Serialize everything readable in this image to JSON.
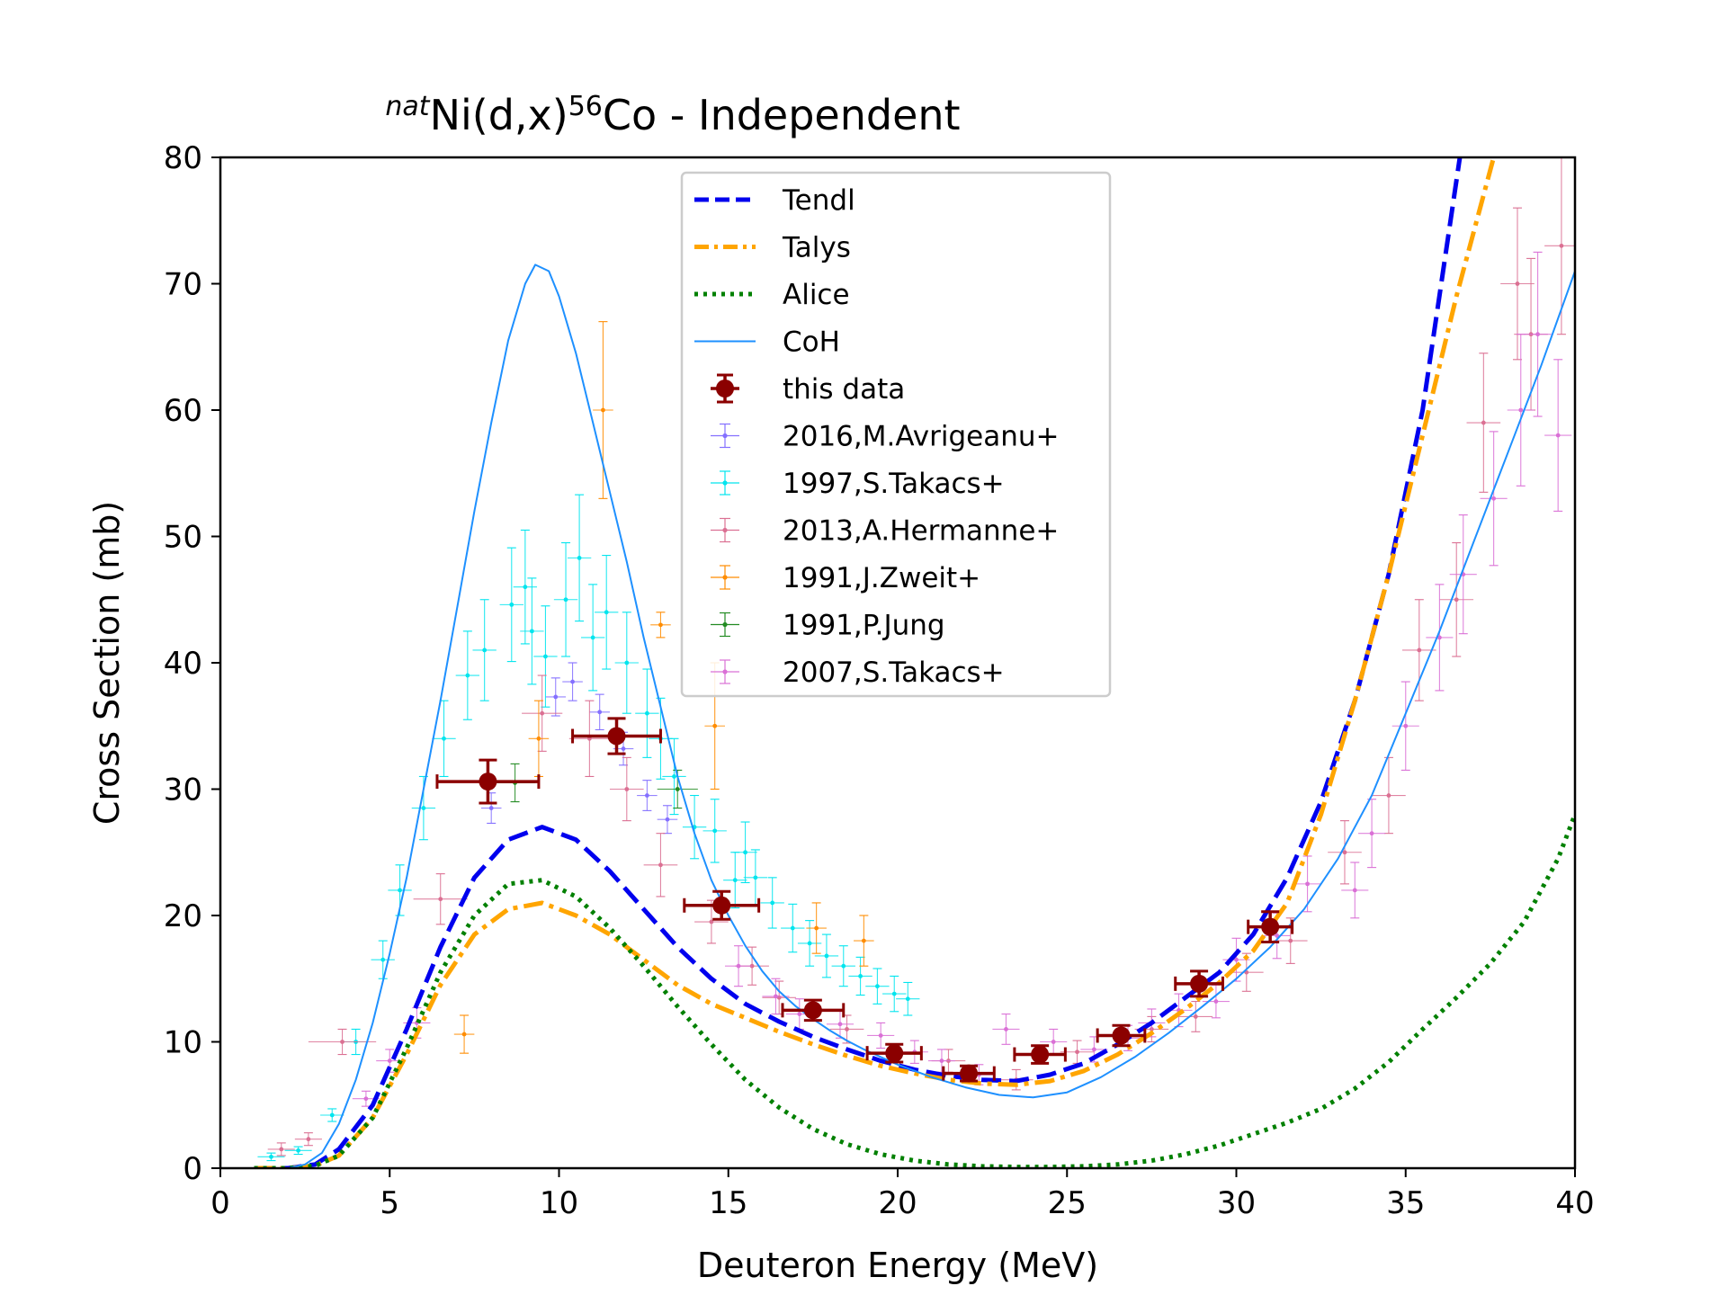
{
  "chart_data": {
    "type": "line",
    "title": {
      "prefix_sup": "nat",
      "part1": "Ni(d,x)",
      "mid_sup": "56",
      "part2": "Co - Independent"
    },
    "xlabel": "Deuteron Energy (MeV)",
    "ylabel": "Cross Section (mb)",
    "xlim": [
      0,
      40
    ],
    "ylim": [
      0,
      80
    ],
    "xticks": [
      0,
      5,
      10,
      15,
      20,
      25,
      30,
      35,
      40
    ],
    "yticks": [
      0,
      10,
      20,
      30,
      40,
      50,
      60,
      70,
      80
    ],
    "grid": false,
    "legend_position": "top-center",
    "curves": [
      {
        "name": "Tendl",
        "color": "#0000ee",
        "style": "dashed",
        "x": [
          1,
          2,
          2.8,
          3.5,
          4.5,
          5.5,
          6.5,
          7.5,
          8.5,
          9.5,
          10.5,
          11.5,
          12.5,
          13.5,
          14.5,
          15.5,
          16.5,
          17.5,
          18.5,
          19.5,
          20.5,
          21.5,
          22.5,
          23.5,
          24.5,
          25.5,
          26.5,
          27.5,
          28.5,
          29.5,
          30.5,
          31.5,
          32.5,
          33.5,
          34.5,
          35.5,
          36.6
        ],
        "y": [
          0,
          0,
          0.3,
          1.5,
          5,
          11,
          17.5,
          23,
          26,
          27,
          26,
          23.5,
          20.5,
          17.5,
          15,
          13,
          11.6,
          10.4,
          9.4,
          8.5,
          7.8,
          7.3,
          7,
          6.9,
          7.4,
          8.3,
          9.8,
          11.5,
          13.5,
          15.5,
          18.5,
          23,
          29,
          37,
          47,
          60,
          80
        ]
      },
      {
        "name": "Talys",
        "color": "#ffa500",
        "style": "dashdot",
        "x": [
          1,
          2,
          2.8,
          3.5,
          4.5,
          5.5,
          6.5,
          7.5,
          8.5,
          9.5,
          10.5,
          11.5,
          12.5,
          13.5,
          14.5,
          15.5,
          16.5,
          17.5,
          18.5,
          19.5,
          20.5,
          21.5,
          22.5,
          23.5,
          24.5,
          25.5,
          26.5,
          27.5,
          28.5,
          29.5,
          30.5,
          31.5,
          32.5,
          33.5,
          34.5,
          35.5,
          36.5,
          37.6
        ],
        "y": [
          0,
          0,
          0.2,
          1,
          4,
          9,
          14.5,
          18.5,
          20.5,
          21,
          20,
          18.5,
          16.5,
          14.5,
          13,
          11.9,
          10.8,
          9.8,
          8.9,
          8.1,
          7.5,
          7,
          6.7,
          6.6,
          6.9,
          7.7,
          9,
          10.7,
          12.6,
          14.7,
          17.2,
          21,
          28,
          37,
          47,
          58,
          69,
          80
        ]
      },
      {
        "name": "Alice",
        "color": "#008000",
        "style": "dotted",
        "x": [
          1,
          2,
          2.8,
          3.5,
          4.5,
          5.5,
          6.5,
          7.5,
          8.5,
          9.5,
          10.5,
          11.5,
          12.5,
          13.5,
          14.5,
          15.5,
          16.5,
          17.5,
          18.5,
          19.5,
          20.5,
          21.5,
          22.5,
          23.5,
          24.5,
          25.5,
          26.5,
          27.5,
          28.5,
          29.5,
          30.5,
          31.5,
          32.5,
          33.5,
          34.5,
          35.5,
          36.5,
          37.5,
          38.5,
          39.5,
          40
        ],
        "y": [
          0,
          0,
          0.2,
          1,
          4,
          9.5,
          15.5,
          20,
          22.5,
          22.8,
          21.5,
          19,
          16,
          12.8,
          9.8,
          7,
          4.8,
          3.1,
          1.9,
          1.1,
          0.6,
          0.3,
          0.15,
          0.1,
          0.1,
          0.15,
          0.3,
          0.6,
          1.1,
          1.8,
          2.7,
          3.6,
          4.7,
          6.3,
          8.4,
          11,
          13.5,
          16.2,
          19.5,
          24.5,
          28
        ]
      },
      {
        "name": "CoH",
        "color": "#1e90ff",
        "style": "solid",
        "x": [
          1,
          2,
          2.5,
          3,
          3.5,
          4,
          4.5,
          5,
          5.5,
          6,
          6.5,
          7,
          7.5,
          8,
          8.5,
          9,
          9.3,
          9.7,
          10,
          10.5,
          11,
          11.5,
          12,
          12.5,
          13,
          13.5,
          14,
          14.5,
          15,
          15.5,
          16,
          16.5,
          17,
          17.5,
          18,
          18.5,
          19,
          19.5,
          20,
          21,
          22,
          23,
          24,
          25,
          26,
          27,
          28,
          29,
          30,
          31,
          32,
          33,
          34,
          35,
          36,
          37,
          38,
          39,
          40
        ],
        "y": [
          0,
          0,
          0.3,
          1.2,
          3.5,
          7,
          11.5,
          17,
          23,
          30,
          37,
          44.5,
          52,
          59,
          65.5,
          70,
          71.5,
          71,
          69,
          64.5,
          59,
          53.5,
          48,
          42,
          36.5,
          31,
          26.5,
          22.8,
          20,
          17.6,
          15.6,
          14,
          12.8,
          11.8,
          10.9,
          10.1,
          9.4,
          8.8,
          8.2,
          7.2,
          6.4,
          5.8,
          5.6,
          6,
          7.2,
          8.8,
          10.7,
          12.8,
          15,
          17.5,
          20.5,
          24.5,
          29.5,
          36,
          42.5,
          49.5,
          56.5,
          63.5,
          71
        ]
      }
    ],
    "this_data": {
      "name": "this data",
      "color": "#8b0000",
      "points": [
        {
          "x": 7.9,
          "y": 30.6,
          "xerr": 1.5,
          "yerr": 1.7
        },
        {
          "x": 11.7,
          "y": 34.2,
          "xerr": 1.3,
          "yerr": 1.4
        },
        {
          "x": 14.8,
          "y": 20.8,
          "xerr": 1.1,
          "yerr": 1.1
        },
        {
          "x": 17.5,
          "y": 12.5,
          "xerr": 0.9,
          "yerr": 0.8
        },
        {
          "x": 19.9,
          "y": 9.1,
          "xerr": 0.8,
          "yerr": 0.7
        },
        {
          "x": 22.1,
          "y": 7.5,
          "xerr": 0.75,
          "yerr": 0.6
        },
        {
          "x": 24.2,
          "y": 9.0,
          "xerr": 0.75,
          "yerr": 0.7
        },
        {
          "x": 26.6,
          "y": 10.5,
          "xerr": 0.7,
          "yerr": 0.8
        },
        {
          "x": 28.9,
          "y": 14.6,
          "xerr": 0.7,
          "yerr": 1.0
        },
        {
          "x": 31.0,
          "y": 19.1,
          "xerr": 0.65,
          "yerr": 1.2
        }
      ]
    },
    "exp_series": [
      {
        "name": "2016,M.Avrigeanu+",
        "color": "#8470ff",
        "points": [
          [
            9.9,
            37.3,
            0.3,
            1.5
          ],
          [
            10.4,
            38.5,
            0.3,
            1.5
          ],
          [
            11.2,
            36.1,
            0.3,
            1.4
          ],
          [
            11.9,
            33.2,
            0.3,
            1.3
          ],
          [
            12.6,
            29.5,
            0.3,
            1.2
          ],
          [
            13.2,
            27.6,
            0.3,
            1.1
          ],
          [
            8.0,
            28.5,
            0.3,
            1.2
          ]
        ]
      },
      {
        "name": "1997,S.Takacs+",
        "color": "#00e5ee",
        "points": [
          [
            1.5,
            0.9,
            0.4,
            0.3
          ],
          [
            2.3,
            1.4,
            0.4,
            0.3
          ],
          [
            3.3,
            4.2,
            0.35,
            0.5
          ],
          [
            4.0,
            10,
            0.35,
            1
          ],
          [
            4.8,
            16.5,
            0.35,
            1.5
          ],
          [
            5.3,
            22,
            0.35,
            2
          ],
          [
            6.0,
            28.5,
            0.35,
            2.5
          ],
          [
            6.6,
            34,
            0.35,
            3
          ],
          [
            7.3,
            39,
            0.35,
            3.5
          ],
          [
            7.8,
            41,
            0.35,
            4
          ],
          [
            8.6,
            44.6,
            0.35,
            4.5
          ],
          [
            9.0,
            46,
            0.35,
            4.5
          ],
          [
            9.6,
            40.5,
            0.35,
            4
          ],
          [
            10.2,
            45,
            0.35,
            4.5
          ],
          [
            10.6,
            48.3,
            0.35,
            5
          ],
          [
            11.4,
            44,
            0.35,
            4.5
          ],
          [
            12.0,
            40,
            0.35,
            4
          ],
          [
            12.6,
            36,
            0.35,
            3.5
          ],
          [
            13.4,
            31,
            0.35,
            3
          ],
          [
            14.0,
            27,
            0.35,
            2.5
          ],
          [
            14.6,
            26.7,
            0.35,
            2.5
          ],
          [
            15.2,
            22.8,
            0.35,
            2.2
          ],
          [
            15.8,
            23,
            0.35,
            2.2
          ],
          [
            16.3,
            21,
            0.35,
            2
          ],
          [
            16.9,
            19,
            0.35,
            1.9
          ],
          [
            17.4,
            17.8,
            0.35,
            1.8
          ],
          [
            17.9,
            16.8,
            0.35,
            1.7
          ],
          [
            18.4,
            16,
            0.35,
            1.6
          ],
          [
            18.9,
            15.2,
            0.35,
            1.5
          ],
          [
            19.4,
            14.4,
            0.35,
            1.4
          ],
          [
            19.9,
            13.8,
            0.35,
            1.4
          ],
          [
            20.3,
            13.4,
            0.35,
            1.3
          ],
          [
            9.2,
            42.5,
            0.35,
            4.2
          ],
          [
            11.0,
            42,
            0.35,
            4.2
          ],
          [
            13.0,
            34,
            0.35,
            3.2
          ],
          [
            15.5,
            25,
            0.35,
            2.4
          ]
        ]
      },
      {
        "name": "2013,A.Hermanne+",
        "color": "#db7093",
        "points": [
          [
            3.6,
            10.0,
            1.0,
            1.0
          ],
          [
            6.5,
            21.3,
            0.8,
            2
          ],
          [
            9.5,
            36,
            0.6,
            3
          ],
          [
            10.9,
            34,
            0.6,
            3
          ],
          [
            12.0,
            30,
            0.5,
            2.5
          ],
          [
            13.0,
            24,
            0.5,
            2.5
          ],
          [
            14.5,
            19.5,
            0.5,
            1.7
          ],
          [
            15.7,
            16,
            0.5,
            1.5
          ],
          [
            16.5,
            13.5,
            0.5,
            1.3
          ],
          [
            18.5,
            11,
            0.5,
            1.1
          ],
          [
            21.5,
            8.5,
            0.5,
            0.9
          ],
          [
            23.5,
            7,
            0.5,
            0.8
          ],
          [
            25.3,
            9.2,
            0.5,
            0.9
          ],
          [
            27.5,
            11,
            0.5,
            1
          ],
          [
            28.8,
            12,
            0.5,
            1.2
          ],
          [
            30.3,
            15.5,
            0.5,
            1.5
          ],
          [
            31.6,
            18,
            0.5,
            1.8
          ],
          [
            33.2,
            25,
            0.5,
            2.5
          ],
          [
            34.5,
            29.5,
            0.5,
            3
          ],
          [
            35.4,
            41,
            0.5,
            4
          ],
          [
            36.5,
            45,
            0.5,
            4.5
          ],
          [
            37.3,
            59,
            0.5,
            5.5
          ],
          [
            38.3,
            70,
            0.5,
            6
          ],
          [
            38.7,
            66,
            0.5,
            6
          ],
          [
            39.6,
            73,
            0.5,
            7
          ],
          [
            1.8,
            1.5,
            0.4,
            0.5
          ],
          [
            2.6,
            2.3,
            0.4,
            0.5
          ]
        ]
      },
      {
        "name": "1991,J.Zweit+",
        "color": "#ff8c00",
        "points": [
          [
            7.2,
            10.6,
            0.3,
            1.5
          ],
          [
            9.4,
            34,
            0.3,
            3
          ],
          [
            11.3,
            60,
            0.3,
            7
          ],
          [
            13.0,
            43,
            0.3,
            1
          ],
          [
            14.6,
            35,
            0.3,
            5
          ],
          [
            17.6,
            19,
            0.3,
            2
          ],
          [
            19.0,
            18,
            0.3,
            2
          ]
        ]
      },
      {
        "name": "1991,P.Jung",
        "color": "#228b22",
        "points": [
          [
            8.7,
            30.5,
            0.6,
            1.5
          ],
          [
            13.5,
            30,
            0.6,
            1.5
          ]
        ]
      },
      {
        "name": "2007,S.Takacs+",
        "color": "#da70d6",
        "points": [
          [
            4.3,
            5.5,
            0.4,
            0.6
          ],
          [
            5.0,
            8.5,
            0.4,
            0.9
          ],
          [
            5.8,
            11.5,
            0.4,
            1.2
          ],
          [
            15.3,
            16,
            0.4,
            1.6
          ],
          [
            16.4,
            13.6,
            0.4,
            1.4
          ],
          [
            17.1,
            12.2,
            0.4,
            1.2
          ],
          [
            18.3,
            11.4,
            0.4,
            1.1
          ],
          [
            19.5,
            10.5,
            0.4,
            1
          ],
          [
            20.5,
            9.2,
            0.4,
            0.9
          ],
          [
            21.3,
            8.5,
            0.4,
            0.9
          ],
          [
            22.4,
            7.4,
            0.4,
            0.8
          ],
          [
            23.2,
            11,
            0.4,
            1.2
          ],
          [
            24.6,
            10,
            0.4,
            1
          ],
          [
            25.8,
            9.4,
            0.4,
            1
          ],
          [
            26.8,
            10.3,
            0.4,
            1
          ],
          [
            27.5,
            11.5,
            0.4,
            1.1
          ],
          [
            28.3,
            12.5,
            0.4,
            1.3
          ],
          [
            29.4,
            13.2,
            0.4,
            1.3
          ],
          [
            30.0,
            16.5,
            0.4,
            1.7
          ],
          [
            31.2,
            18.4,
            0.4,
            1.8
          ],
          [
            32.1,
            22.5,
            0.4,
            2.2
          ],
          [
            33.5,
            22,
            0.4,
            2.2
          ],
          [
            34.0,
            26.5,
            0.4,
            2.7
          ],
          [
            35.0,
            35,
            0.4,
            3.5
          ],
          [
            36.0,
            42,
            0.4,
            4.2
          ],
          [
            36.7,
            47,
            0.4,
            4.7
          ],
          [
            37.6,
            53,
            0.4,
            5.3
          ],
          [
            38.4,
            60,
            0.4,
            6
          ],
          [
            38.9,
            66,
            0.4,
            6.5
          ],
          [
            39.5,
            58,
            0.4,
            6
          ]
        ]
      }
    ]
  }
}
